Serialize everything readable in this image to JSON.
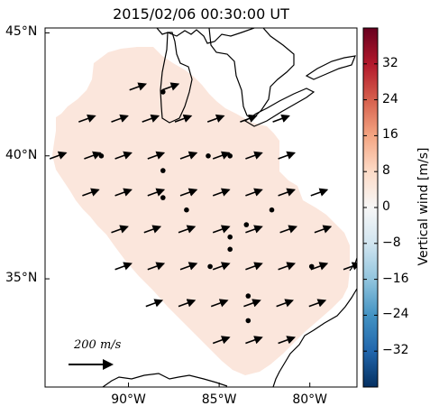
{
  "title": "2015/02/06 00:30:00 UT",
  "map": {
    "lon_range": [
      -94.6,
      -77.4
    ],
    "lat_range": [
      30.6,
      45.2
    ],
    "y_ticks": [
      {
        "lat": 45,
        "label": "45°N"
      },
      {
        "lat": 40,
        "label": "40°N"
      },
      {
        "lat": 35,
        "label": "35°N"
      }
    ],
    "x_ticks": [
      {
        "lon": -90,
        "label": "90°W"
      },
      {
        "lon": -85,
        "label": "85°W"
      },
      {
        "lon": -80,
        "label": "80°W"
      }
    ],
    "field_color": "#fbe6dc",
    "field_value_m_s": 5,
    "wind_direction_deg_from_east": 20,
    "arrow_rows": [
      {
        "lat": 42.8,
        "lons": [
          -89.5,
          -87.7
        ]
      },
      {
        "lat": 41.5,
        "lons": [
          -92.3,
          -90.5,
          -88.8,
          -87.0,
          -85.2,
          -83.4,
          -81.6
        ]
      },
      {
        "lat": 40.0,
        "lons": [
          -93.9,
          -92.0,
          -90.3,
          -88.5,
          -86.7,
          -84.9,
          -83.1,
          -81.3
        ]
      },
      {
        "lat": 38.5,
        "lons": [
          -92.1,
          -90.3,
          -88.5,
          -86.7,
          -84.9,
          -83.1,
          -81.3,
          -79.5
        ]
      },
      {
        "lat": 37.0,
        "lons": [
          -90.5,
          -88.7,
          -86.8,
          -84.9,
          -83.1,
          -81.2,
          -79.3
        ]
      },
      {
        "lat": 35.5,
        "lons": [
          -90.3,
          -88.5,
          -86.7,
          -84.9,
          -83.1,
          -81.3,
          -79.5,
          -77.7
        ]
      },
      {
        "lat": 34.0,
        "lons": [
          -88.6,
          -86.8,
          -85.0,
          -83.2,
          -81.4,
          -79.6
        ]
      },
      {
        "lat": 32.5,
        "lons": [
          -84.9,
          -83.1,
          -81.3
        ]
      }
    ],
    "stations": [
      {
        "lon": -88.1,
        "lat": 42.6
      },
      {
        "lon": -91.5,
        "lat": 40.0
      },
      {
        "lon": -85.6,
        "lat": 40.0
      },
      {
        "lon": -84.4,
        "lat": 40.0
      },
      {
        "lon": -88.1,
        "lat": 39.4
      },
      {
        "lon": -88.1,
        "lat": 38.3
      },
      {
        "lon": -86.8,
        "lat": 37.8
      },
      {
        "lon": -83.5,
        "lat": 37.2
      },
      {
        "lon": -82.1,
        "lat": 37.8
      },
      {
        "lon": -84.4,
        "lat": 36.7
      },
      {
        "lon": -84.4,
        "lat": 36.2
      },
      {
        "lon": -85.5,
        "lat": 35.5
      },
      {
        "lon": -79.9,
        "lat": 35.5
      },
      {
        "lon": -83.4,
        "lat": 34.3
      },
      {
        "lon": -83.4,
        "lat": 33.3
      }
    ]
  },
  "scale_arrow": {
    "label": "200 m/s"
  },
  "colorbar": {
    "label": "Vertical wind [m/s]",
    "range": [
      -40,
      40
    ],
    "ticks": [
      32,
      24,
      16,
      8,
      0,
      -8,
      -16,
      -24,
      -32
    ],
    "tick_labels": [
      "32",
      "24",
      "16",
      "8",
      "0",
      "−8",
      "−16",
      "−24",
      "−32"
    ],
    "colors": [
      "#053061",
      "#2166ac",
      "#4393c3",
      "#92c5de",
      "#d1e5f0",
      "#f7f7f7",
      "#fddbc7",
      "#f4a582",
      "#d6604d",
      "#b2182b",
      "#67001f"
    ]
  }
}
